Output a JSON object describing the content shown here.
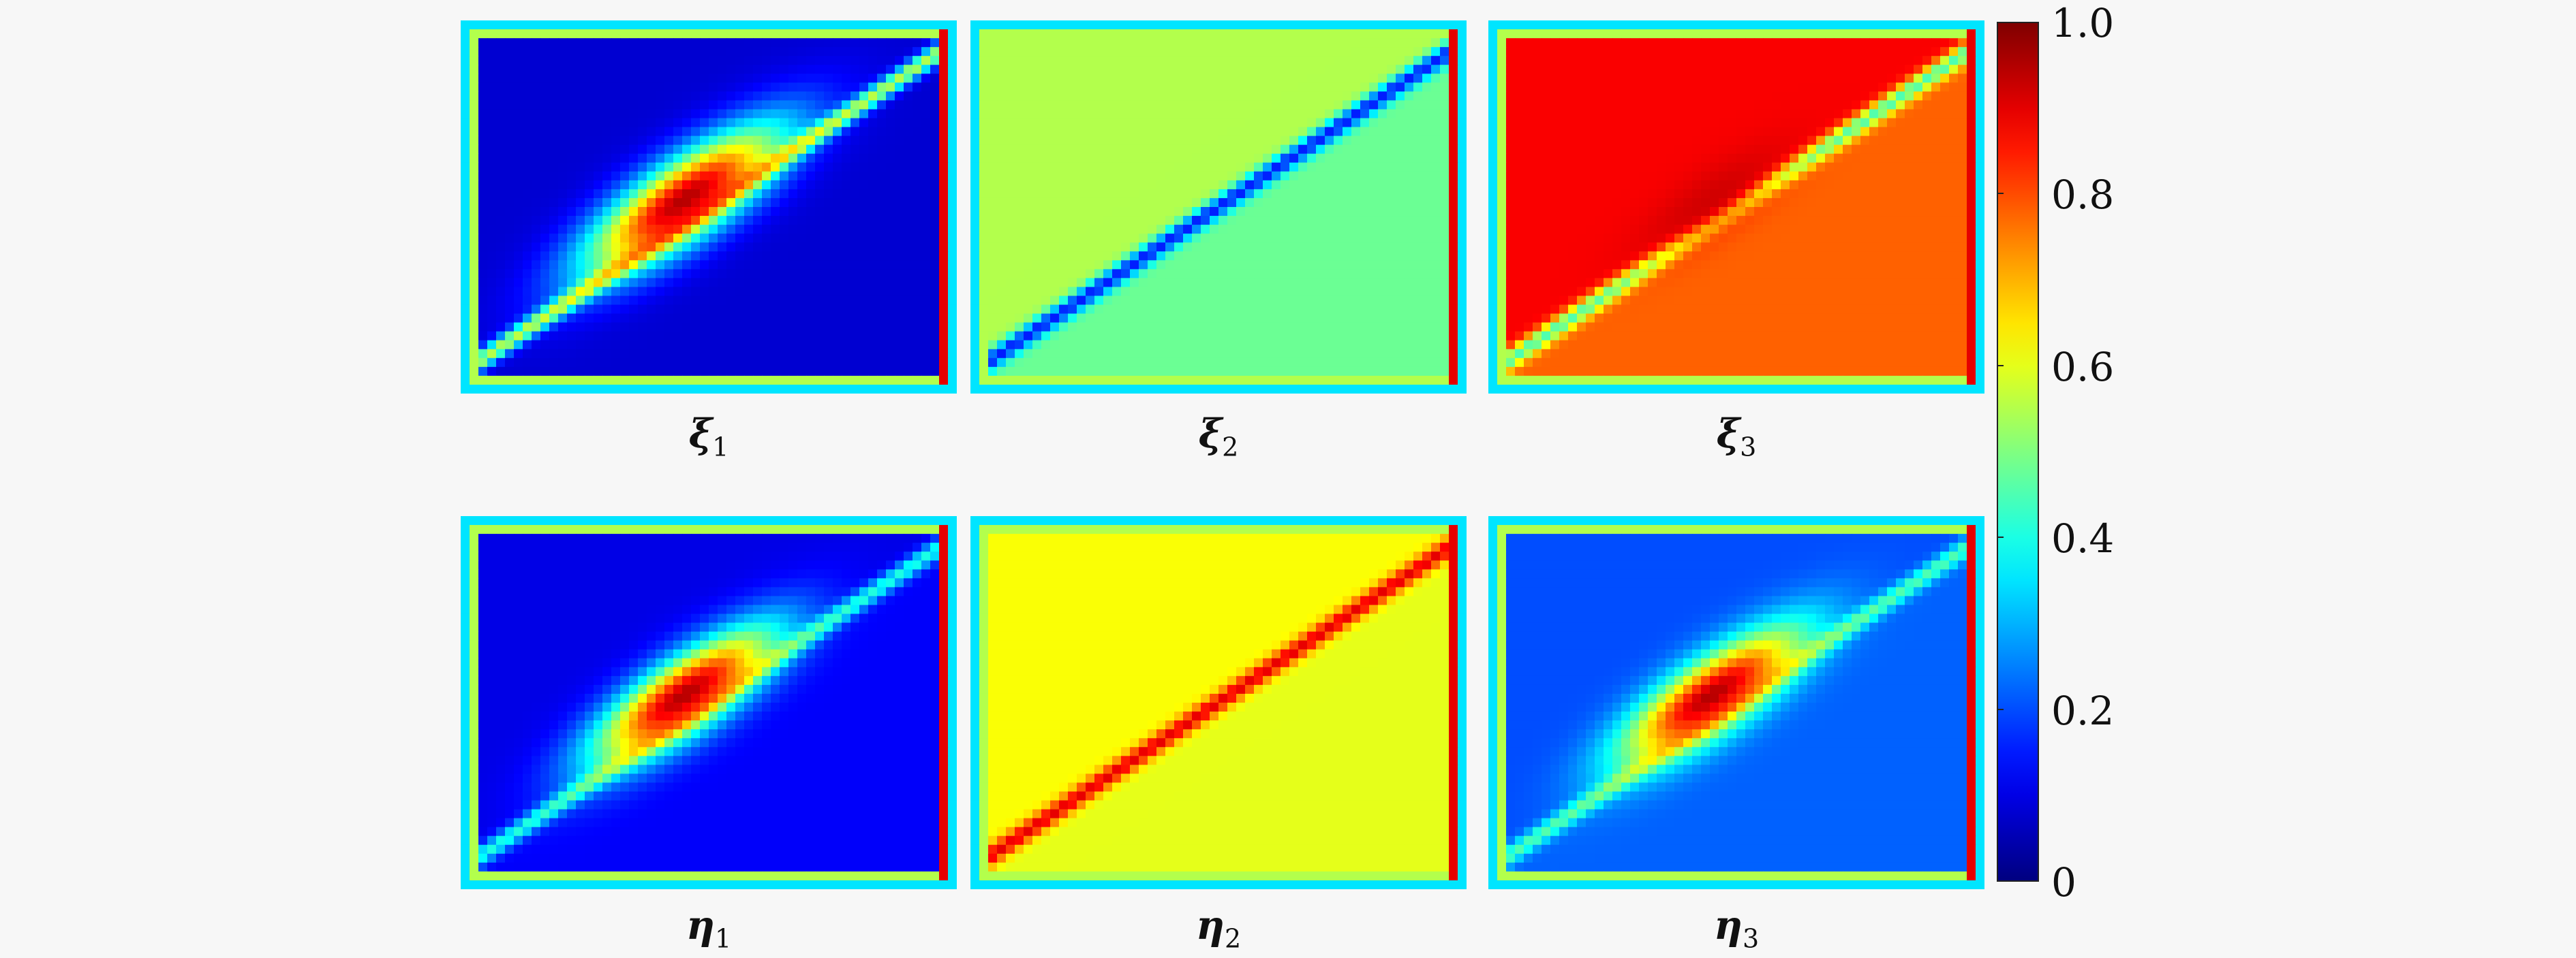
{
  "chart_data": {
    "type": "heatmap",
    "colormap": "jet",
    "layout": "2 rows x 3 columns of heatmap panels sharing one vertical colorbar on the right",
    "colorbar": {
      "range": [
        0,
        1.0
      ],
      "ticks": [
        0,
        0.2,
        0.4,
        0.6,
        0.8,
        1.0
      ],
      "tick_labels": [
        "0",
        "0.2",
        "0.4",
        "0.6",
        "0.8",
        "1.0"
      ]
    },
    "panels": [
      {
        "id": "xi1",
        "symbol": "ξ",
        "index": "1",
        "background": 0.08,
        "diagonal": 0.55,
        "blob_peak": 0.95,
        "blob_spread": 0.35,
        "diagonal_dir": "bottom-left to top-right",
        "upper_left": 0.08,
        "lower_right": 0.08
      },
      {
        "id": "xi2",
        "symbol": "ξ",
        "index": "2",
        "background": 0.5,
        "diagonal": 0.15,
        "blob_peak": 0.5,
        "blob_spread": 0.0,
        "diagonal_dir": "bottom-left to top-right",
        "upper_left": 0.55,
        "lower_right": 0.48
      },
      {
        "id": "xi3",
        "symbol": "ξ",
        "index": "3",
        "background": 0.85,
        "diagonal": 0.45,
        "blob_peak": 0.92,
        "blob_spread": 0.2,
        "diagonal_dir": "bottom-left to top-right",
        "upper_left": 0.88,
        "lower_right": 0.78
      },
      {
        "id": "eta1",
        "symbol": "η",
        "index": "1",
        "background": 0.1,
        "diagonal": 0.4,
        "blob_peak": 0.95,
        "blob_spread": 0.3,
        "diagonal_dir": "bottom-left to top-right",
        "upper_left": 0.1,
        "lower_right": 0.12
      },
      {
        "id": "eta2",
        "symbol": "η",
        "index": "2",
        "background": 0.6,
        "diagonal": 0.9,
        "blob_peak": 0.6,
        "blob_spread": 0.0,
        "diagonal_dir": "bottom-left to top-right",
        "upper_left": 0.62,
        "lower_right": 0.6
      },
      {
        "id": "eta3",
        "symbol": "η",
        "index": "3",
        "background": 0.2,
        "diagonal": 0.45,
        "blob_peak": 0.95,
        "blob_spread": 0.28,
        "diagonal_dir": "bottom-left to top-right",
        "upper_left": 0.2,
        "lower_right": 0.22
      }
    ]
  }
}
